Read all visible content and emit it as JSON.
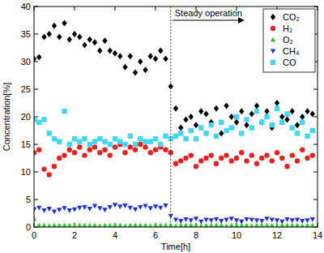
{
  "chart_data": {
    "type": "scatter",
    "xlabel": "Time[h]",
    "ylabel": "Concentration[%]",
    "x": [
      0,
      0.25,
      0.5,
      0.75,
      1,
      1.25,
      1.5,
      1.75,
      2,
      2.25,
      2.5,
      2.75,
      3,
      3.25,
      3.5,
      3.75,
      4,
      4.25,
      4.5,
      4.75,
      5,
      5.25,
      5.5,
      5.75,
      6,
      6.25,
      6.5,
      6.75,
      7,
      7.25,
      7.5,
      7.75,
      8,
      8.25,
      8.5,
      8.75,
      9,
      9.25,
      9.5,
      9.75,
      10,
      10.25,
      10.5,
      10.75,
      11,
      11.25,
      11.5,
      11.75,
      12,
      12.25,
      12.5,
      12.75,
      13,
      13.25,
      13.5,
      13.75
    ],
    "series": [
      {
        "name": "CO₂",
        "color": "#000000",
        "marker": "diamond",
        "values": [
          30.5,
          30.8,
          34.5,
          35,
          36.5,
          34.5,
          37,
          34,
          35,
          34.5,
          33,
          34,
          33.5,
          32,
          33.8,
          32,
          31.5,
          31,
          29,
          31,
          28,
          30,
          28.5,
          31,
          30.5,
          32,
          30.5,
          25.5,
          21.5,
          18,
          19.5,
          20,
          18.5,
          21,
          20.5,
          19,
          21.5,
          17,
          22,
          20,
          19,
          21,
          18.5,
          20.5,
          22,
          19,
          21,
          18,
          22.5,
          20,
          19.5,
          21,
          18.5,
          20,
          21,
          20.5
        ]
      },
      {
        "name": "H₂",
        "color": "#e8201c",
        "marker": "circle",
        "values": [
          13.5,
          14,
          10.5,
          9.5,
          11,
          12.5,
          13,
          14,
          13.5,
          14.5,
          13,
          14,
          14.5,
          13.5,
          14,
          13,
          14.5,
          15,
          13.5,
          14.5,
          14,
          15,
          14.5,
          13.5,
          14,
          14.5,
          14,
          13.5,
          11.5,
          12,
          12.5,
          13,
          11,
          12,
          12.5,
          13,
          11.5,
          12.5,
          13,
          12,
          12.5,
          13.5,
          12,
          13,
          11.5,
          12.5,
          13,
          12,
          13.5,
          12.5,
          11,
          13,
          12,
          14,
          12.5,
          13
        ]
      },
      {
        "name": "O₂",
        "color": "#22cc22",
        "marker": "triangle-up",
        "values": [
          1.5,
          0.3,
          0.3,
          0.2,
          0.3,
          0.3,
          0.3,
          0.3,
          0.2,
          0.3,
          0.3,
          0.3,
          0.3,
          0.2,
          0.3,
          0.3,
          0.3,
          0.3,
          0.2,
          0.3,
          0.3,
          0.3,
          0.3,
          0.2,
          0.3,
          0.3,
          0.3,
          0.3,
          0.2,
          0.3,
          0.3,
          0.3,
          0.3,
          0.2,
          0.3,
          0.3,
          0.3,
          0.3,
          0.2,
          0.3,
          0.3,
          0.3,
          0.3,
          0.2,
          0.3,
          0.3,
          0.3,
          0.3,
          0.2,
          0.3,
          0.3,
          0.3,
          0.3,
          0.2,
          0.3,
          0.3
        ]
      },
      {
        "name": "CH₄",
        "color": "#1e2fd8",
        "marker": "triangle-down",
        "values": [
          3.2,
          3.5,
          3,
          3.3,
          2.8,
          3.1,
          3.4,
          3,
          3.2,
          3.5,
          3.6,
          3.3,
          3.8,
          3.4,
          3.1,
          3.6,
          4,
          3.7,
          3.9,
          3.5,
          3.2,
          3.6,
          3.8,
          3.4,
          3.7,
          3.5,
          3.9,
          2,
          1.3,
          1.1,
          1.4,
          1.2,
          1.5,
          1,
          1.3,
          1.2,
          1.4,
          1.1,
          1.3,
          1.5,
          1.2,
          1,
          1.4,
          1.3,
          1.2,
          1.1,
          1.5,
          1.3,
          1.2,
          1,
          1.4,
          1.2,
          1.3,
          1.1,
          1.2,
          1.4
        ]
      },
      {
        "name": "CO",
        "color": "#44d6ee",
        "marker": "square",
        "values": [
          19.5,
          19,
          19.5,
          17,
          16,
          15.5,
          21,
          15,
          16,
          15.5,
          16,
          15,
          15.5,
          16,
          15.5,
          15,
          16,
          15.5,
          15,
          16.5,
          15,
          16,
          15.5,
          15.5,
          16,
          15,
          16.5,
          16,
          16.5,
          17,
          16,
          17.5,
          16,
          18,
          17,
          18.5,
          16.5,
          19,
          17.5,
          18,
          20,
          17,
          19.5,
          18,
          21,
          19,
          20,
          18.5,
          21.5,
          19,
          20.5,
          18,
          17,
          19,
          16.5,
          17.5
        ]
      }
    ],
    "annotations": [
      {
        "text": "Steady operation",
        "x": 6.75
      }
    ],
    "xlim": [
      0,
      14
    ],
    "xticks": [
      0,
      2,
      4,
      6,
      8,
      10,
      12,
      14
    ],
    "ylim": [
      0,
      40
    ],
    "yticks": [
      0,
      5,
      10,
      15,
      20,
      25,
      30,
      35,
      40
    ],
    "legend": "top-right"
  }
}
